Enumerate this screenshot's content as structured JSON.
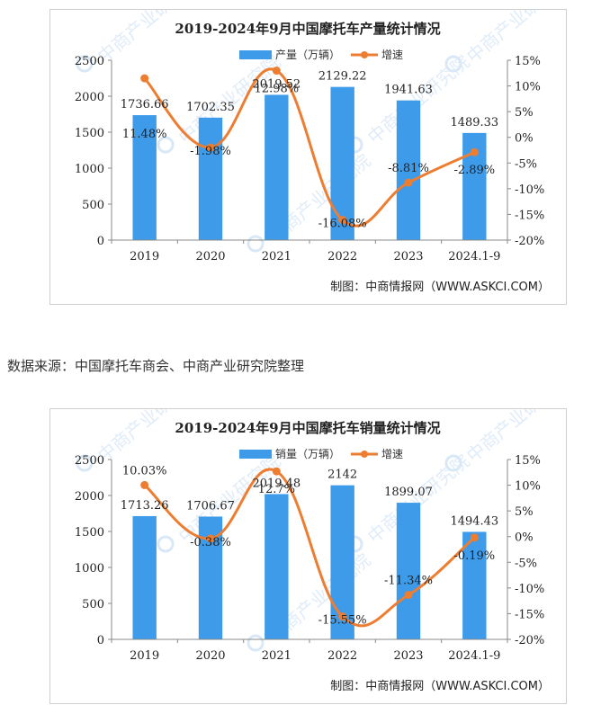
{
  "source_note": "数据来源：中国摩托车商会、中商产业研究院整理",
  "chart_data": [
    {
      "type": "bar",
      "title": "2019-2024年9月中国摩托车产量统计情况",
      "categories": [
        "2019",
        "2020",
        "2021",
        "2022",
        "2023",
        "2024.1-9"
      ],
      "series": [
        {
          "name": "产量（万辆）",
          "type": "bar",
          "axis": "left",
          "color": "#3d9be9",
          "values": [
            1736.66,
            1702.35,
            2019.52,
            2129.22,
            1941.63,
            1489.33
          ],
          "labels": [
            "1736.66",
            "1702.35",
            "2019.52",
            "2129.22",
            "1941.63",
            "1489.33"
          ]
        },
        {
          "name": "增速",
          "type": "line",
          "axis": "right",
          "color": "#ed7d31",
          "smooth": true,
          "values": [
            11.48,
            -1.98,
            12.98,
            -16.08,
            -8.81,
            -2.89
          ],
          "labels": [
            "11.48%",
            "-1.98%",
            "12.98%",
            "-16.08%",
            "-8.81%",
            "-2.89%"
          ]
        }
      ],
      "ylim_left": [
        0,
        2500
      ],
      "yticks_left": [
        "0",
        "500",
        "1000",
        "1500",
        "2000",
        "2500"
      ],
      "ylim_right": [
        -20,
        15
      ],
      "yticks_right": [
        "-20%",
        "-15%",
        "-10%",
        "-5%",
        "0%",
        "5%",
        "10%",
        "15%"
      ],
      "legend_position": "top",
      "watermark": "中商产业研究院",
      "credit": "制图：中商情报网（WWW.ASKCI.COM）"
    },
    {
      "type": "bar",
      "title": "2019-2024年9月中国摩托车销量统计情况",
      "categories": [
        "2019",
        "2020",
        "2021",
        "2022",
        "2023",
        "2024.1-9"
      ],
      "series": [
        {
          "name": "销量（万辆）",
          "type": "bar",
          "axis": "left",
          "color": "#3d9be9",
          "values": [
            1713.26,
            1706.67,
            2019.48,
            2142,
            1899.07,
            1494.43
          ],
          "labels": [
            "1713.26",
            "1706.67",
            "2019.48",
            "2142",
            "1899.07",
            "1494.43"
          ]
        },
        {
          "name": "增速",
          "type": "line",
          "axis": "right",
          "color": "#ed7d31",
          "smooth": true,
          "values": [
            10.03,
            -0.38,
            12.7,
            -15.55,
            -11.34,
            -0.19
          ],
          "labels": [
            "10.03%",
            "-0.38%",
            "12.7%",
            "-15.55%",
            "-11.34%",
            "-0.19%"
          ]
        }
      ],
      "ylim_left": [
        0,
        2500
      ],
      "yticks_left": [
        "0",
        "500",
        "1000",
        "1500",
        "2000",
        "2500"
      ],
      "ylim_right": [
        -20,
        15
      ],
      "yticks_right": [
        "-20%",
        "-15%",
        "-10%",
        "-5%",
        "0%",
        "5%",
        "10%",
        "15%"
      ],
      "legend_position": "top",
      "watermark": "中商产业研究院",
      "credit": "制图：中商情报网（WWW.ASKCI.COM）"
    }
  ]
}
